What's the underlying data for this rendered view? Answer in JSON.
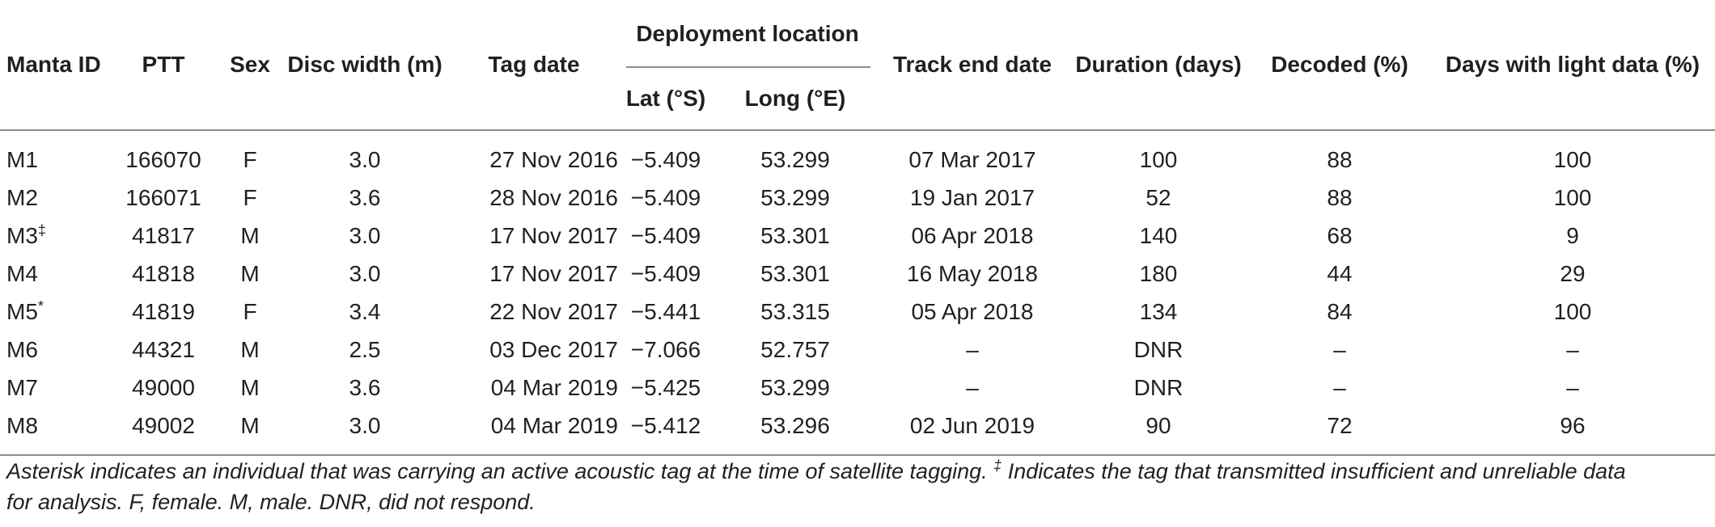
{
  "table": {
    "headers": {
      "manta_id": "Manta ID",
      "ptt": "PTT",
      "sex": "Sex",
      "disc_width": "Disc width (m)",
      "tag_date": "Tag date",
      "deployment_location": "Deployment location",
      "lat": "Lat (°S)",
      "long": "Long (°E)",
      "track_end_date": "Track end date",
      "duration": "Duration (days)",
      "decoded": "Decoded (%)",
      "light_days": "Days with light data (%)"
    },
    "rows": [
      {
        "id": "M1",
        "mark": "",
        "ptt": "166070",
        "sex": "F",
        "disc": "3.0",
        "tag_date": "27 Nov 2016",
        "lat": "−5.409",
        "long": "53.299",
        "end": "07 Mar 2017",
        "duration": "100",
        "decoded": "88",
        "light": "100"
      },
      {
        "id": "M2",
        "mark": "",
        "ptt": "166071",
        "sex": "F",
        "disc": "3.6",
        "tag_date": "28 Nov 2016",
        "lat": "−5.409",
        "long": "53.299",
        "end": "19 Jan 2017",
        "duration": "52",
        "decoded": "88",
        "light": "100"
      },
      {
        "id": "M3",
        "mark": "‡",
        "ptt": "41817",
        "sex": "M",
        "disc": "3.0",
        "tag_date": "17 Nov 2017",
        "lat": "−5.409",
        "long": "53.301",
        "end": "06 Apr 2018",
        "duration": "140",
        "decoded": "68",
        "light": "9"
      },
      {
        "id": "M4",
        "mark": "",
        "ptt": "41818",
        "sex": "M",
        "disc": "3.0",
        "tag_date": "17 Nov 2017",
        "lat": "−5.409",
        "long": "53.301",
        "end": "16 May 2018",
        "duration": "180",
        "decoded": "44",
        "light": "29"
      },
      {
        "id": "M5",
        "mark": "*",
        "ptt": "41819",
        "sex": "F",
        "disc": "3.4",
        "tag_date": "22 Nov 2017",
        "lat": "−5.441",
        "long": "53.315",
        "end": "05 Apr 2018",
        "duration": "134",
        "decoded": "84",
        "light": "100"
      },
      {
        "id": "M6",
        "mark": "",
        "ptt": "44321",
        "sex": "M",
        "disc": "2.5",
        "tag_date": "03 Dec 2017",
        "lat": "−7.066",
        "long": "52.757",
        "end": "–",
        "duration": "DNR",
        "decoded": "–",
        "light": "–"
      },
      {
        "id": "M7",
        "mark": "",
        "ptt": "49000",
        "sex": "M",
        "disc": "3.6",
        "tag_date": "04 Mar 2019",
        "lat": "−5.425",
        "long": "53.299",
        "end": "–",
        "duration": "DNR",
        "decoded": "–",
        "light": "–"
      },
      {
        "id": "M8",
        "mark": "",
        "ptt": "49002",
        "sex": "M",
        "disc": "3.0",
        "tag_date": "04 Mar 2019",
        "lat": "−5.412",
        "long": "53.296",
        "end": "02 Jun 2019",
        "duration": "90",
        "decoded": "72",
        "light": "96"
      }
    ]
  },
  "caption": {
    "line1_before": "Asterisk indicates an individual that was carrying an active acoustic tag at the time of satellite tagging.",
    "dagger": "‡",
    "line1_after": "Indicates the tag that transmitted insufficient and unreliable data",
    "line2": "for analysis. F, female. M, male. DNR, did not respond."
  }
}
